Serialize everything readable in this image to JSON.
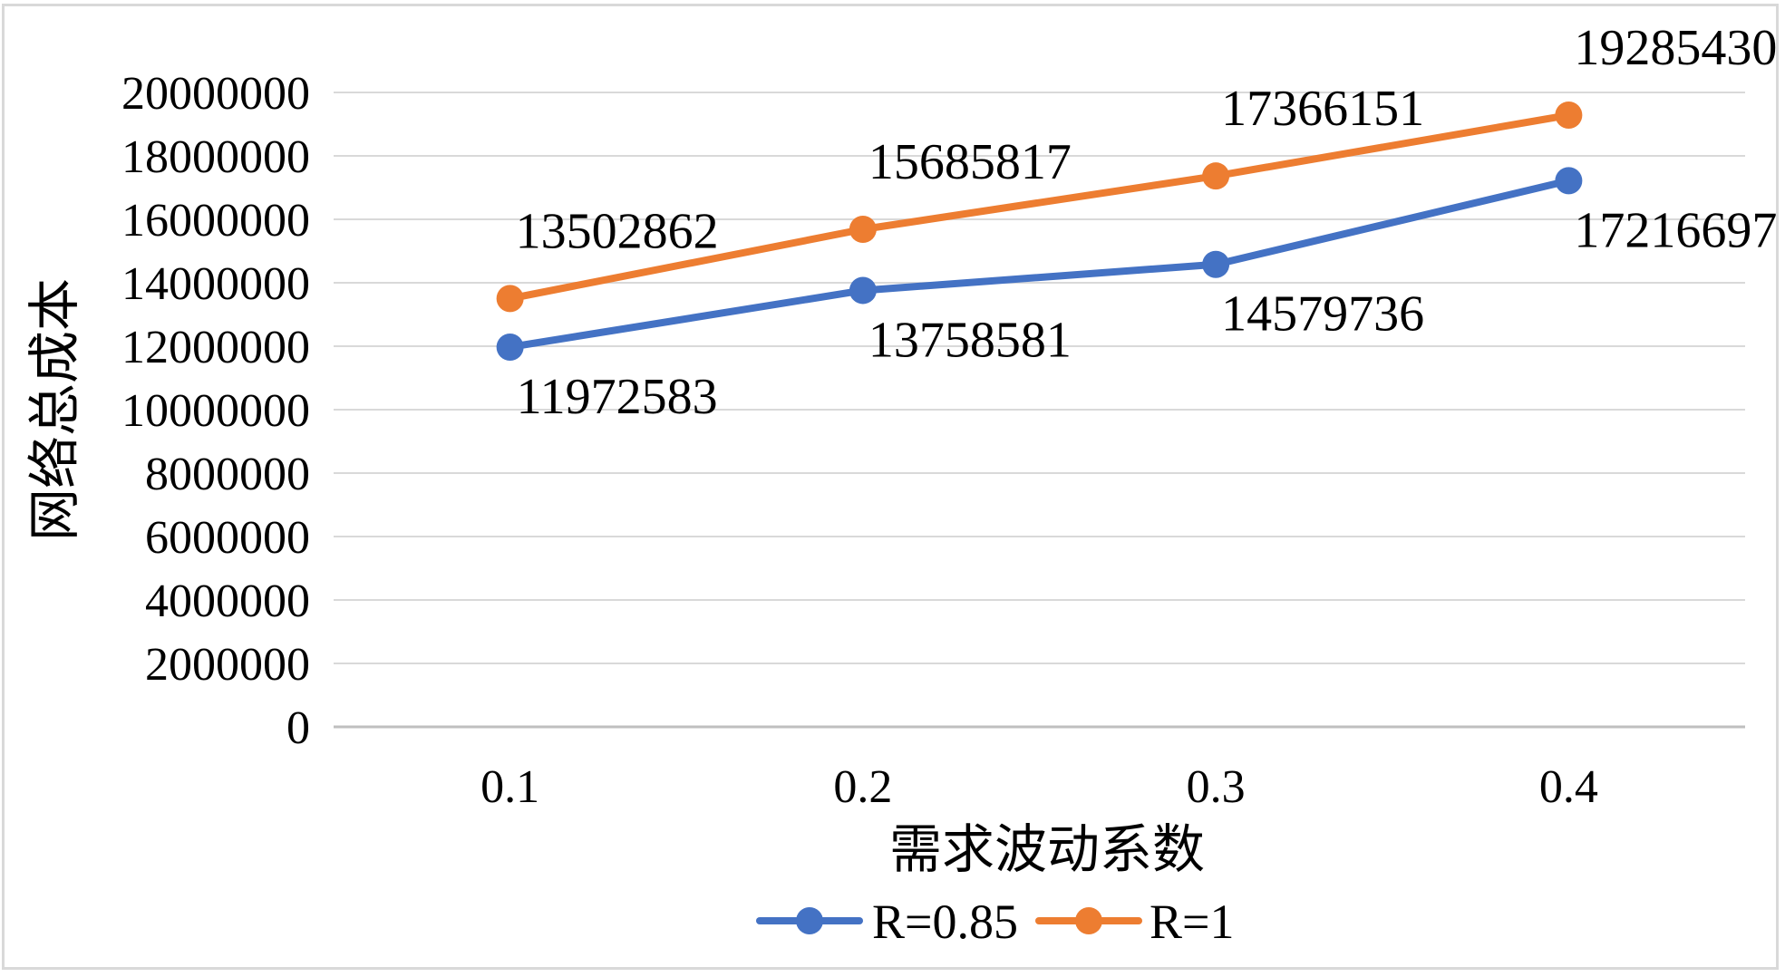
{
  "chart_data": {
    "type": "line",
    "title": "",
    "xlabel": "需求波动系数",
    "ylabel": "网络总成本",
    "categories": [
      "0.1",
      "0.2",
      "0.3",
      "0.4"
    ],
    "ylim": [
      0,
      20000000
    ],
    "yticks": [
      0,
      2000000,
      4000000,
      6000000,
      8000000,
      10000000,
      12000000,
      14000000,
      16000000,
      18000000,
      20000000
    ],
    "grid": true,
    "legend_position": "bottom",
    "series": [
      {
        "name": "R=0.85",
        "color": "#4472c4",
        "values": [
          11972583,
          13758581,
          14579736,
          17216697
        ],
        "labels": [
          "11972583",
          "13758581",
          "14579736",
          "17216697"
        ],
        "label_position": "below"
      },
      {
        "name": "R=1",
        "color": "#ed7d31",
        "values": [
          13502862,
          15685817,
          17366151,
          19285430
        ],
        "labels": [
          "13502862",
          "15685817",
          "17366151",
          "19285430"
        ],
        "label_position": "above"
      }
    ]
  }
}
